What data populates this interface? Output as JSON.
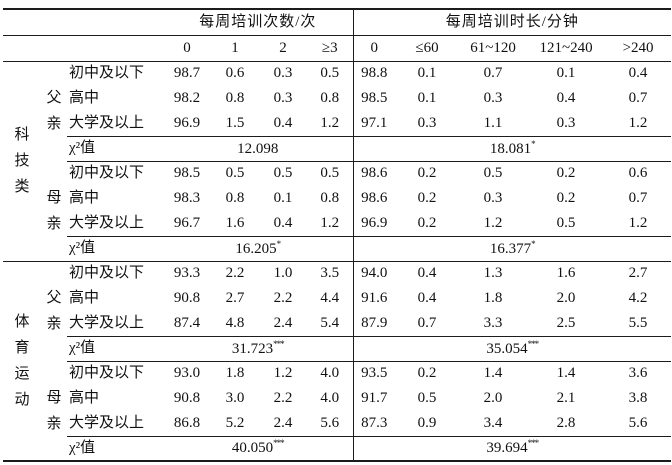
{
  "table": {
    "col_group_headers": [
      {
        "label": "每周培训次数/次"
      },
      {
        "label": "每周培训时长/分钟"
      }
    ],
    "times_cols": [
      "0",
      "1",
      "2",
      "≥3"
    ],
    "duration_cols": [
      "0",
      "≤60",
      "61~120",
      "121~240",
      ">240"
    ],
    "chi2_label": "χ²值",
    "sections": [
      {
        "category": "科技类",
        "groups": [
          {
            "parent": "父亲",
            "rows": [
              {
                "label": "初中及以下",
                "times": [
                  "98.7",
                  "0.6",
                  "0.3",
                  "0.5"
                ],
                "duration": [
                  "98.8",
                  "0.1",
                  "0.7",
                  "0.1",
                  "0.4"
                ]
              },
              {
                "label": "高中",
                "times": [
                  "98.2",
                  "0.8",
                  "0.3",
                  "0.8"
                ],
                "duration": [
                  "98.5",
                  "0.1",
                  "0.3",
                  "0.4",
                  "0.7"
                ]
              },
              {
                "label": "大学及以上",
                "times": [
                  "96.9",
                  "1.5",
                  "0.4",
                  "1.2"
                ],
                "duration": [
                  "97.1",
                  "0.3",
                  "1.1",
                  "0.3",
                  "1.2"
                ]
              }
            ],
            "chi2": {
              "times": "12.098",
              "times_stars": "",
              "duration": "18.081",
              "duration_stars": "*"
            }
          },
          {
            "parent": "母亲",
            "rows": [
              {
                "label": "初中及以下",
                "times": [
                  "98.5",
                  "0.5",
                  "0.5",
                  "0.5"
                ],
                "duration": [
                  "98.6",
                  "0.2",
                  "0.5",
                  "0.2",
                  "0.6"
                ]
              },
              {
                "label": "高中",
                "times": [
                  "98.3",
                  "0.8",
                  "0.1",
                  "0.8"
                ],
                "duration": [
                  "98.6",
                  "0.2",
                  "0.3",
                  "0.2",
                  "0.7"
                ]
              },
              {
                "label": "大学及以上",
                "times": [
                  "96.7",
                  "1.6",
                  "0.4",
                  "1.2"
                ],
                "duration": [
                  "96.9",
                  "0.2",
                  "1.2",
                  "0.5",
                  "1.2"
                ]
              }
            ],
            "chi2": {
              "times": "16.205",
              "times_stars": "*",
              "duration": "16.377",
              "duration_stars": "*"
            }
          }
        ]
      },
      {
        "category": "体育运动",
        "groups": [
          {
            "parent": "父亲",
            "rows": [
              {
                "label": "初中及以下",
                "times": [
                  "93.3",
                  "2.2",
                  "1.0",
                  "3.5"
                ],
                "duration": [
                  "94.0",
                  "0.4",
                  "1.3",
                  "1.6",
                  "2.7"
                ]
              },
              {
                "label": "高中",
                "times": [
                  "90.8",
                  "2.7",
                  "2.2",
                  "4.4"
                ],
                "duration": [
                  "91.6",
                  "0.4",
                  "1.8",
                  "2.0",
                  "4.2"
                ]
              },
              {
                "label": "大学及以上",
                "times": [
                  "87.4",
                  "4.8",
                  "2.4",
                  "5.4"
                ],
                "duration": [
                  "87.9",
                  "0.7",
                  "3.3",
                  "2.5",
                  "5.5"
                ]
              }
            ],
            "chi2": {
              "times": "31.723",
              "times_stars": "***",
              "duration": "35.054",
              "duration_stars": "***"
            }
          },
          {
            "parent": "母亲",
            "rows": [
              {
                "label": "初中及以下",
                "times": [
                  "93.0",
                  "1.8",
                  "1.2",
                  "4.0"
                ],
                "duration": [
                  "93.5",
                  "0.2",
                  "1.4",
                  "1.4",
                  "3.6"
                ]
              },
              {
                "label": "高中",
                "times": [
                  "90.8",
                  "3.0",
                  "2.2",
                  "4.0"
                ],
                "duration": [
                  "91.7",
                  "0.5",
                  "2.0",
                  "2.1",
                  "3.8"
                ]
              },
              {
                "label": "大学及以上",
                "times": [
                  "86.8",
                  "5.2",
                  "2.4",
                  "5.6"
                ],
                "duration": [
                  "87.3",
                  "0.9",
                  "3.4",
                  "2.8",
                  "5.6"
                ]
              }
            ],
            "chi2": {
              "times": "40.050",
              "times_stars": "***",
              "duration": "39.694",
              "duration_stars": "***"
            }
          }
        ]
      }
    ]
  }
}
